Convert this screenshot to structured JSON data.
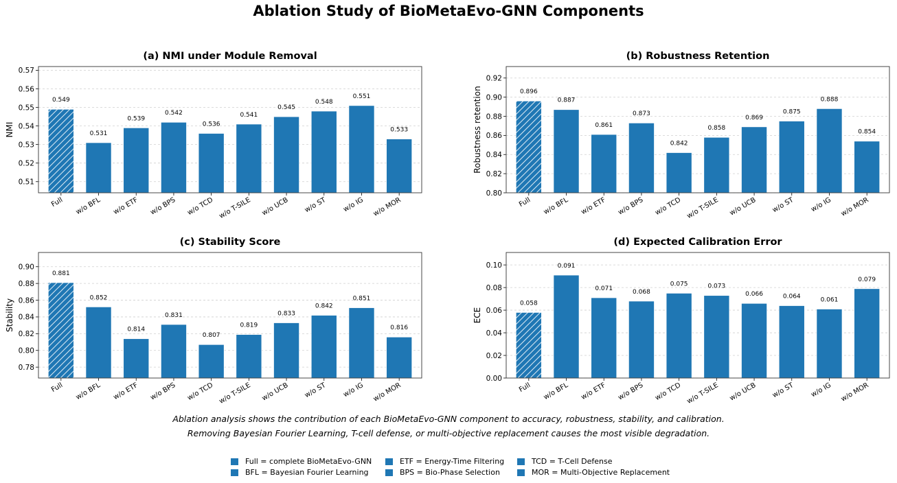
{
  "title": "Ablation Study of BioMetaEvo-GNN Components",
  "chart_data": [
    {
      "type": "bar",
      "title": "(a) NMI under Module Removal",
      "xlabel": "",
      "ylabel": "NMI",
      "categories": [
        "Full",
        "w/o BFL",
        "w/o ETF",
        "w/o BPS",
        "w/o TCD",
        "w/o T-SILE",
        "w/o UCB",
        "w/o ST",
        "w/o IG",
        "w/o MOR"
      ],
      "values": [
        0.549,
        0.531,
        0.539,
        0.542,
        0.536,
        0.541,
        0.545,
        0.548,
        0.551,
        0.533
      ],
      "value_labels": [
        "0.549",
        "0.531",
        "0.539",
        "0.542",
        "0.536",
        "0.541",
        "0.545",
        "0.548",
        "0.551",
        "0.533"
      ],
      "ylim": [
        0.504,
        0.572
      ],
      "yticks": [
        "0.51",
        "0.52",
        "0.53",
        "0.54",
        "0.55",
        "0.56",
        "0.57"
      ],
      "ytick_values": [
        0.51,
        0.52,
        0.53,
        0.54,
        0.55,
        0.56,
        0.57
      ],
      "grid": true,
      "color": "#1f77b4",
      "highlight": "Full (hatched)"
    },
    {
      "type": "bar",
      "title": "(b) Robustness Retention",
      "xlabel": "",
      "ylabel": "Robustness retention",
      "categories": [
        "Full",
        "w/o BFL",
        "w/o ETF",
        "w/o BPS",
        "w/o TCD",
        "w/o T-SILE",
        "w/o UCB",
        "w/o ST",
        "w/o IG",
        "w/o MOR"
      ],
      "values": [
        0.896,
        0.887,
        0.861,
        0.873,
        0.842,
        0.858,
        0.869,
        0.875,
        0.888,
        0.854
      ],
      "value_labels": [
        "0.896",
        "0.887",
        "0.861",
        "0.873",
        "0.842",
        "0.858",
        "0.869",
        "0.875",
        "0.888",
        "0.854"
      ],
      "ylim": [
        0.8,
        0.932
      ],
      "yticks": [
        "0.80",
        "0.82",
        "0.84",
        "0.86",
        "0.88",
        "0.90",
        "0.92"
      ],
      "ytick_values": [
        0.8,
        0.82,
        0.84,
        0.86,
        0.88,
        0.9,
        0.92
      ],
      "grid": true,
      "color": "#1f77b4",
      "highlight": "Full (hatched)"
    },
    {
      "type": "bar",
      "title": "(c) Stability Score",
      "xlabel": "",
      "ylabel": "Stability",
      "categories": [
        "Full",
        "w/o BFL",
        "w/o ETF",
        "w/o BPS",
        "w/o TCD",
        "w/o T-SILE",
        "w/o UCB",
        "w/o ST",
        "w/o IG",
        "w/o MOR"
      ],
      "values": [
        0.881,
        0.852,
        0.814,
        0.831,
        0.807,
        0.819,
        0.833,
        0.842,
        0.851,
        0.816
      ],
      "value_labels": [
        "0.881",
        "0.852",
        "0.814",
        "0.831",
        "0.807",
        "0.819",
        "0.833",
        "0.842",
        "0.851",
        "0.816"
      ],
      "ylim": [
        0.767,
        0.917
      ],
      "yticks": [
        "0.78",
        "0.80",
        "0.82",
        "0.84",
        "0.86",
        "0.88",
        "0.90"
      ],
      "ytick_values": [
        0.78,
        0.8,
        0.82,
        0.84,
        0.86,
        0.88,
        0.9
      ],
      "grid": true,
      "color": "#1f77b4",
      "highlight": "Full (hatched)"
    },
    {
      "type": "bar",
      "title": "(d) Expected Calibration Error",
      "xlabel": "",
      "ylabel": "ECE",
      "categories": [
        "Full",
        "w/o BFL",
        "w/o ETF",
        "w/o BPS",
        "w/o TCD",
        "w/o T-SILE",
        "w/o UCB",
        "w/o ST",
        "w/o IG",
        "w/o MOR"
      ],
      "values": [
        0.058,
        0.091,
        0.071,
        0.068,
        0.075,
        0.073,
        0.066,
        0.064,
        0.061,
        0.079
      ],
      "value_labels": [
        "0.058",
        "0.091",
        "0.071",
        "0.068",
        "0.075",
        "0.073",
        "0.066",
        "0.064",
        "0.061",
        "0.079"
      ],
      "ylim": [
        0.0,
        0.111
      ],
      "yticks": [
        "0.00",
        "0.02",
        "0.04",
        "0.06",
        "0.08",
        "0.10"
      ],
      "ytick_values": [
        0.0,
        0.02,
        0.04,
        0.06,
        0.08,
        0.1
      ],
      "grid": true,
      "color": "#1f77b4",
      "highlight": "Full (hatched)"
    }
  ],
  "captions": [
    "Ablation analysis shows the contribution of each BioMetaEvo-GNN component to accuracy, robustness, stability, and calibration.",
    "Removing Bayesian Fourier Learning, T-cell defense, or multi-objective replacement causes the most visible degradation."
  ],
  "legend": [
    "Full = complete BioMetaEvo-GNN",
    "BFL = Bayesian Fourier Learning",
    "ETF = Energy-Time Filtering",
    "BPS = Bio-Phase Selection",
    "TCD = T-Cell Defense",
    "MOR = Multi-Objective Replacement"
  ]
}
